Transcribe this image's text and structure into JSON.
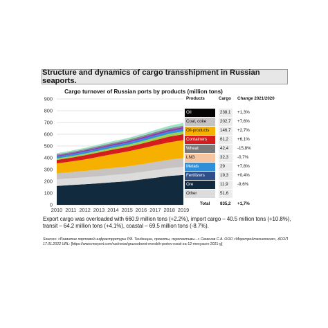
{
  "page_title": "Structure and dynamics of cargo transshipment in Russian seaports.",
  "colors": {
    "Oil": "#050505",
    "Coal, coke": "#c7c3c3",
    "Oil-products": "#f5b000",
    "Containers": "#d61d1d",
    "Wheat": "#7a7a7a",
    "LNG": "#f6c6a0",
    "Metals": "#2f8fd9",
    "Fertilizers": "#2f4f88",
    "Ore": "#112a3e",
    "Other": "#dcdcdc",
    "Coal": "#9bd24f",
    "Grain": "#8a3fb8"
  },
  "chart_data": {
    "type": "area",
    "title": "Cargo turnover of Russian ports by products (million tons)",
    "x": [
      2010,
      2011,
      2012,
      2013,
      2014,
      2015,
      2016,
      2017,
      2018,
      2019
    ],
    "ylim": [
      0,
      900
    ],
    "yticks": [
      0,
      100,
      200,
      300,
      400,
      500,
      600,
      700,
      800,
      900
    ],
    "series": [
      {
        "key": "Ore",
        "color": "#112a3e",
        "values": [
          160,
          168,
          175,
          183,
          192,
          200,
          215,
          230,
          245,
          255
        ]
      },
      {
        "key": "Other",
        "color": "#dcdcdc",
        "values": [
          57,
          58,
          58,
          60,
          62,
          63,
          64,
          66,
          67,
          68
        ]
      },
      {
        "key": "Coal",
        "color": "#c7c3c3",
        "values": [
          50,
          52,
          55,
          58,
          60,
          63,
          65,
          68,
          72,
          75
        ]
      },
      {
        "key": "Oil-products",
        "color": "#f5b000",
        "values": [
          85,
          90,
          98,
          108,
          118,
          127,
          135,
          142,
          148,
          152
        ]
      },
      {
        "key": "Containers",
        "color": "#d61d1d",
        "values": [
          30,
          32,
          35,
          37,
          38,
          38,
          40,
          44,
          48,
          50
        ]
      },
      {
        "key": "Coal-green",
        "color": "#9bd24f",
        "values": [
          12,
          13,
          14,
          15,
          16,
          18,
          20,
          22,
          24,
          25
        ]
      },
      {
        "key": "Metals",
        "color": "#2f8fd9",
        "values": [
          15,
          15,
          16,
          16,
          17,
          17,
          18,
          18,
          19,
          19
        ]
      },
      {
        "key": "Grain",
        "color": "#8a3fb8",
        "values": [
          10,
          11,
          12,
          12,
          13,
          14,
          15,
          16,
          16,
          17
        ]
      },
      {
        "key": "Wheat",
        "color": "#8a8a8a",
        "values": [
          10,
          10,
          10,
          11,
          11,
          11,
          12,
          12,
          13,
          13
        ]
      },
      {
        "key": "LNG",
        "color": "#9ee3c8",
        "values": [
          10,
          11,
          12,
          13,
          14,
          15,
          16,
          18,
          20,
          22
        ]
      }
    ],
    "legend": {
      "headers": {
        "products": "Products",
        "cargo": "Cargo",
        "change": "Change 2021/2020"
      },
      "rows": [
        {
          "name": "Oil",
          "cargo": "238,1",
          "change": "+1,3%",
          "color": "#050505",
          "text_color": "#ffffff"
        },
        {
          "name": "Coal, coke",
          "cargo": "202,7",
          "change": "+7,6%",
          "color": "#c7c3c3",
          "text_color": "#111111"
        },
        {
          "name": "Oil-products",
          "cargo": "146,7",
          "change": "+2,7%",
          "color": "#f5b000",
          "text_color": "#111111"
        },
        {
          "name": "Containers",
          "cargo": "61,2",
          "change": "+6,1%",
          "color": "#d61d1d",
          "text_color": "#ffffff"
        },
        {
          "name": "Wheat",
          "cargo": "42,4",
          "change": "-15,8%",
          "color": "#7a7a7a",
          "text_color": "#ffffff"
        },
        {
          "name": "LNG",
          "cargo": "32,3",
          "change": "-0,7%",
          "color": "#f6c6a0",
          "text_color": "#111111"
        },
        {
          "name": "Metals",
          "cargo": "29",
          "change": "+7,8%",
          "color": "#2f8fd9",
          "text_color": "#ffffff"
        },
        {
          "name": "Fertilizers",
          "cargo": "19,3",
          "change": "+0,4%",
          "color": "#2f4f88",
          "text_color": "#ffffff"
        },
        {
          "name": "Ore",
          "cargo": "11,9",
          "change": "-9,6%",
          "color": "#112a3e",
          "text_color": "#ffffff"
        },
        {
          "name": "Other",
          "cargo": "51,6",
          "change": "",
          "color": "#dcdcdc",
          "text_color": "#111111"
        }
      ],
      "total": {
        "label": "Total",
        "cargo": "835,2",
        "change": "+1,7%"
      }
    }
  },
  "body_text": "Export cargo was overloaded with 660.9 million tons (+2.2%), import cargo – 40.5 million tons (+10.8%), transit – 64.2 million tons (+4.1%), coastal – 69.5 million tons (-8.7%).",
  "sources": {
    "text": "Sources: «Развитие портовой инфраструктуры РФ. Тенденции, проекты, перспективы...» Семенов С.А. ООО «Морстройтехнология», АСОП 17.01.2022 URL:",
    "url": "[https://www.morport.com/rus/news/gruzooborot-morskih-portov-rossii-za-12-mesyacev-2021-g]"
  }
}
